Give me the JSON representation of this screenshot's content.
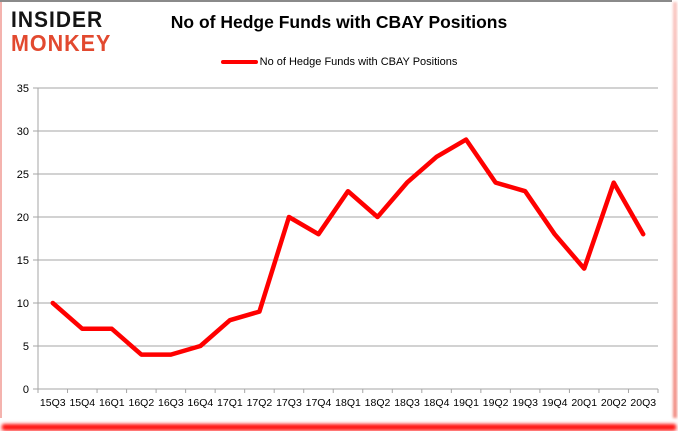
{
  "logo": {
    "line1": "INSIDER",
    "line2": "MONKEY",
    "line1_color": "#141414",
    "line2_color": "#e2492f"
  },
  "header": {
    "title": "No of Hedge Funds with CBAY Positions"
  },
  "legend": {
    "label": "No of Hedge Funds with CBAY Positions",
    "swatch_color": "#ff0000"
  },
  "chart_data": {
    "type": "line",
    "title": "No of Hedge Funds with CBAY Positions",
    "categories": [
      "15Q3",
      "15Q4",
      "16Q1",
      "16Q2",
      "16Q3",
      "16Q4",
      "17Q1",
      "17Q2",
      "17Q3",
      "17Q4",
      "18Q1",
      "18Q2",
      "18Q3",
      "18Q4",
      "19Q1",
      "19Q2",
      "19Q3",
      "19Q4",
      "20Q1",
      "20Q2",
      "20Q3"
    ],
    "series": [
      {
        "name": "No of Hedge Funds with CBAY Positions",
        "color": "#ff0000",
        "values": [
          10,
          7,
          7,
          4,
          4,
          5,
          8,
          9,
          20,
          18,
          23,
          20,
          24,
          27,
          29,
          24,
          23,
          18,
          14,
          24,
          18
        ]
      }
    ],
    "xlabel": "",
    "ylabel": "",
    "ylim": [
      0,
      35
    ],
    "yticks": [
      0,
      5,
      10,
      15,
      20,
      25,
      30,
      35
    ],
    "grid": true,
    "legend_position": "top-center",
    "gridline_color": "#a6a6a6",
    "axis_color": "#a6a6a6",
    "text_color": "#000000"
  }
}
